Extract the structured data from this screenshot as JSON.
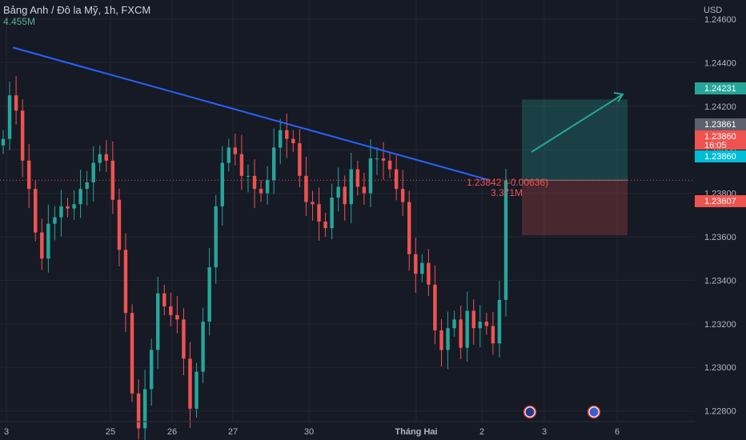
{
  "header": {
    "title": "Bảng Anh / Đô la Mỹ, 1h, FXCM",
    "volume": "4.455M"
  },
  "colors": {
    "background": "#161a25",
    "up": "#26a69a",
    "down": "#ef5350",
    "trendline": "#2962ff",
    "grid": "#232632",
    "axis_text": "#b2b5be"
  },
  "chart_data": {
    "type": "candlestick",
    "currency_label": "USD",
    "y_ticks": [
      "1.24600",
      "1.24400",
      "1.24200",
      "1.24000",
      "1.23800",
      "1.23600",
      "1.23400",
      "1.23200",
      "1.23000",
      "1.22800",
      "1.22600"
    ],
    "x_ticks": [
      "3",
      "25",
      "26",
      "27",
      "30",
      "Tháng Hai",
      "2",
      "3",
      "6"
    ],
    "ylim": [
      1.2245,
      1.2472
    ],
    "trendline": {
      "start": {
        "x": "3",
        "y": 1.2447
      },
      "end": {
        "x": "2",
        "y": 1.2386
      }
    },
    "price_tags": [
      {
        "value": "1.24231",
        "color": "#26a69a"
      },
      {
        "value": "1.23861",
        "color": "#5d606b"
      },
      {
        "value": "1.23860",
        "sub": "16:05",
        "color": "#ef5350"
      },
      {
        "value": "1.23860",
        "color": "#00bcd4"
      },
      {
        "value": "1.23607",
        "color": "#ef5350"
      }
    ],
    "position": {
      "entry": 1.2386,
      "target": 1.24231,
      "stop": 1.23607
    },
    "annotation": {
      "price": "1.23842 (-0.00636)",
      "volume": "3.371M"
    },
    "event_markers": [
      "GB",
      "US"
    ],
    "series": [
      {
        "name": "Bảng Anh / Đô la Mỹ",
        "values": [
          1.2405,
          1.2425,
          1.2418,
          1.2395,
          1.2382,
          1.2362,
          1.235,
          1.2366,
          1.2369,
          1.2374,
          1.2373,
          1.2375,
          1.2382,
          1.2385,
          1.2394,
          1.2398,
          1.2395,
          1.2377,
          1.2354,
          1.2325,
          1.2288,
          1.2272,
          1.229,
          1.2308,
          1.2334,
          1.2328,
          1.2324,
          1.2322,
          1.2304,
          1.2281,
          1.2298,
          1.2321,
          1.2346,
          1.2374,
          1.2394,
          1.2401,
          1.2398,
          1.2388,
          1.2388,
          1.2382,
          1.238,
          1.2386,
          1.2401,
          1.2409,
          1.2405,
          1.2403,
          1.2388,
          1.2376,
          1.2375,
          1.2367,
          1.2364,
          1.2378,
          1.2383,
          1.2375,
          1.2391,
          1.2383,
          1.238,
          1.2396,
          1.2396,
          1.2395,
          1.2391,
          1.2382,
          1.2376,
          1.2352,
          1.2343,
          1.2348,
          1.2338,
          1.2317,
          1.2308,
          1.2318,
          1.2322,
          1.2309,
          1.2326,
          1.2318,
          1.2321,
          1.2319,
          1.2311,
          1.2331,
          1.2386
        ]
      }
    ]
  }
}
